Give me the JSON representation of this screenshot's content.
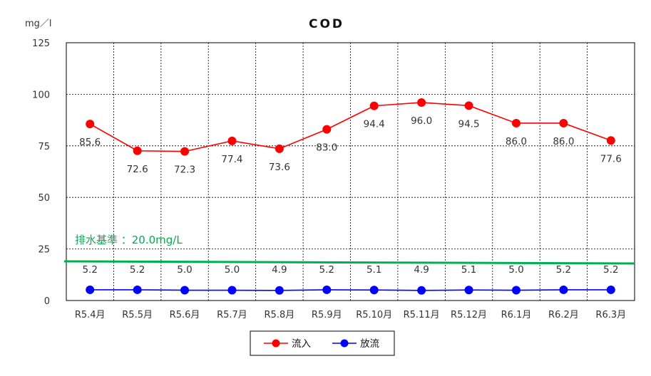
{
  "chart_data": {
    "type": "line",
    "title": "COD",
    "unit": "mg／l",
    "categories": [
      "R5.4月",
      "R5.5月",
      "R5.6月",
      "R5.7月",
      "R5.8月",
      "R5.9月",
      "R5.10月",
      "R5.11月",
      "R5.12月",
      "R6.1月",
      "R6.2月",
      "R6.3月"
    ],
    "ylim": [
      0,
      125
    ],
    "yticks": [
      0,
      25,
      50,
      75,
      100,
      125
    ],
    "grid": true,
    "series": [
      {
        "name": "流入",
        "color": "#ff0000",
        "values": [
          85.6,
          72.6,
          72.3,
          77.4,
          73.6,
          83.0,
          94.4,
          96.0,
          94.5,
          86.0,
          86.0,
          77.6
        ],
        "labels": [
          "85.6",
          "72.6",
          "72.3",
          "77.4",
          "73.6",
          "83.0",
          "94.4",
          "96.0",
          "94.5",
          "86.0",
          "86.0",
          "77.6"
        ]
      },
      {
        "name": "放流",
        "color": "#0000ff",
        "values": [
          5.2,
          5.2,
          5.0,
          5.0,
          4.9,
          5.2,
          5.1,
          4.9,
          5.1,
          5.0,
          5.2,
          5.2
        ],
        "labels": [
          "5.2",
          "5.2",
          "5.0",
          "5.0",
          "4.9",
          "5.2",
          "5.1",
          "4.9",
          "5.1",
          "5.0",
          "5.2",
          "5.2"
        ]
      }
    ],
    "reference_line": {
      "label": "排水基準 ：20.0mg/L",
      "color": "#00b050"
    },
    "legend_position": "bottom-center"
  }
}
